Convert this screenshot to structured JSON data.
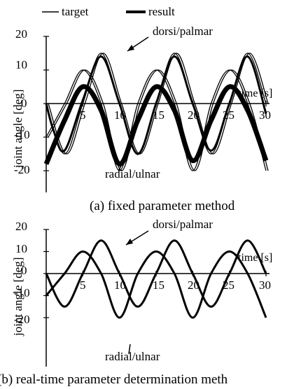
{
  "legend": {
    "items": [
      {
        "label": "target",
        "style": "thin"
      },
      {
        "label": "result",
        "style": "thick"
      }
    ]
  },
  "colors": {
    "ink": "#000000",
    "background": "#ffffff"
  },
  "chart_data": [
    {
      "type": "line",
      "caption": "(a) fixed parameter method",
      "ylabel": "joint angle [deg]",
      "xlabel": "time [s]",
      "xlim": [
        0,
        30
      ],
      "ylim": [
        -25,
        20
      ],
      "xticks": [
        "5",
        "10",
        "15",
        "20",
        "25",
        "30"
      ],
      "yticks": [
        "20",
        "10",
        "0",
        "-10",
        "-20"
      ],
      "annotations": [
        "dorsi/palmar",
        "radial/ulnar"
      ],
      "series": [
        {
          "name": "target",
          "group": "dorsi/palmar",
          "style": "thin",
          "x": [
            0,
            2.5,
            5,
            7.5,
            10,
            12.5,
            15,
            17.5,
            20,
            22.5,
            25,
            27.5,
            30
          ],
          "y": [
            0,
            -15,
            0,
            15,
            0,
            -15,
            0,
            15,
            0,
            -15,
            0,
            15,
            0
          ]
        },
        {
          "name": "target",
          "group": "radial/ulnar",
          "style": "thin",
          "x": [
            0,
            2.5,
            5,
            7.5,
            10,
            12.5,
            15,
            17.5,
            20,
            22.5,
            25,
            27.5,
            30
          ],
          "y": [
            -10,
            0,
            10,
            0,
            -20,
            0,
            10,
            0,
            -20,
            0,
            10,
            0,
            -20
          ]
        },
        {
          "name": "result",
          "group": "dorsi/palmar",
          "style": "thick",
          "x": [
            0,
            1,
            2.5,
            5,
            7.5,
            10,
            12.5,
            15,
            17.5,
            20,
            22.5,
            25,
            27.5,
            30
          ],
          "y": [
            0,
            -8,
            -14,
            1,
            14,
            0,
            -15,
            0,
            14,
            0,
            -14,
            0,
            14,
            -3
          ]
        },
        {
          "name": "result",
          "group": "radial/ulnar",
          "style": "thick",
          "x": [
            0,
            2.5,
            5,
            7.5,
            10,
            12.5,
            15,
            17.5,
            20,
            22.5,
            25,
            27.5,
            30
          ],
          "y": [
            -18,
            -5,
            5,
            -2,
            -18,
            -5,
            5,
            -2,
            -17,
            -5,
            5,
            -2,
            -17
          ]
        }
      ]
    },
    {
      "type": "line",
      "caption": "(b) real-time parameter determination meth",
      "ylabel": "joint angle [deg]",
      "xlabel": "time [s]",
      "xlim": [
        0,
        30
      ],
      "ylim": [
        -25,
        20
      ],
      "xticks": [
        "5",
        "10",
        "15",
        "20",
        "25",
        "30"
      ],
      "yticks": [
        "20",
        "10",
        "0",
        "-10",
        "-20"
      ],
      "annotations": [
        "dorsi/palmar",
        "radial/ulnar"
      ],
      "series": [
        {
          "name": "result",
          "group": "dorsi/palmar",
          "style": "thick",
          "x": [
            0,
            2.5,
            5,
            7.5,
            10,
            12.5,
            15,
            17.5,
            20,
            22.5,
            25,
            27.5,
            30
          ],
          "y": [
            0,
            -15,
            0,
            15,
            0,
            -15,
            0,
            15,
            0,
            -15,
            0,
            15,
            0
          ]
        },
        {
          "name": "result",
          "group": "radial/ulnar",
          "style": "thick",
          "x": [
            0,
            2.5,
            5,
            7.5,
            10,
            12.5,
            15,
            17.5,
            20,
            22.5,
            25,
            27.5,
            30
          ],
          "y": [
            -10,
            0,
            10,
            0,
            -20,
            0,
            10,
            0,
            -20,
            0,
            10,
            0,
            -20
          ]
        }
      ]
    }
  ]
}
